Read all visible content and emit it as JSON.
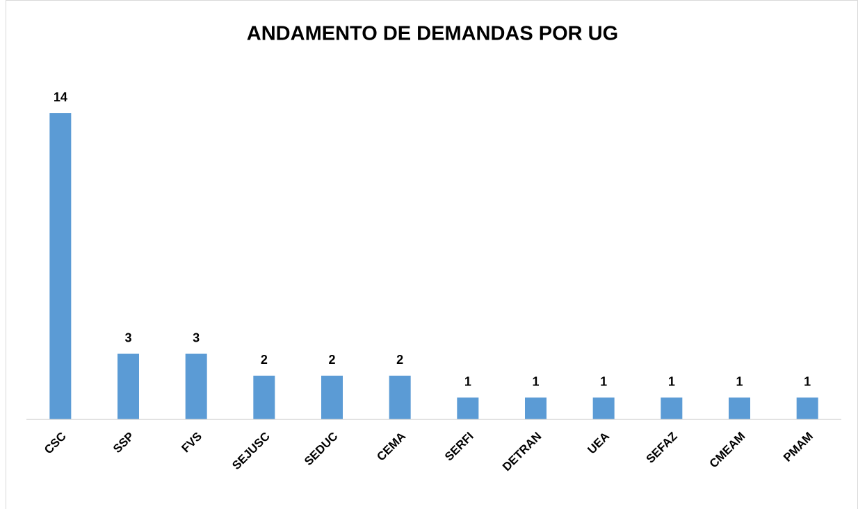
{
  "chart_data": {
    "type": "bar",
    "title": "ANDAMENTO DE DEMANDAS POR UG",
    "categories": [
      "CSC",
      "SSP",
      "FVS",
      "SEJUSC",
      "SEDUC",
      "CEMA",
      "SERFI",
      "DETRAN",
      "UEA",
      "SEFAZ",
      "CMEAM",
      "PMAM"
    ],
    "values": [
      14,
      3,
      3,
      2,
      2,
      2,
      1,
      1,
      1,
      1,
      1,
      1
    ],
    "color": "#5b9bd5"
  }
}
